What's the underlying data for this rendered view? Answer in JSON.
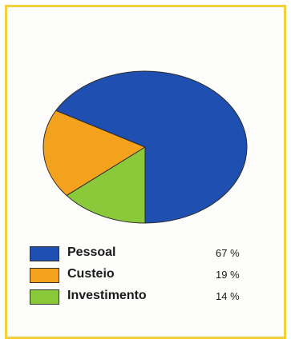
{
  "chart_data": {
    "type": "pie",
    "title": "",
    "slices": [
      {
        "label": "Pessoal",
        "value": 67,
        "display": "67 %",
        "color": "#1f4fb0"
      },
      {
        "label": "Custeio",
        "value": 19,
        "display": "19 %",
        "color": "#f4a21d"
      },
      {
        "label": "Investimento",
        "value": 14,
        "display": "14 %",
        "color": "#8ac93a"
      }
    ],
    "legend_position": "bottom"
  },
  "colors": {
    "frame_border": "#f2d03c",
    "background": "#fdfdfb",
    "outline": "#2b2b2b"
  }
}
